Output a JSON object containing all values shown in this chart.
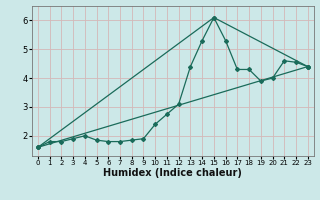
{
  "title": "",
  "xlabel": "Humidex (Indice chaleur)",
  "background_color": "#cce8e8",
  "grid_color": "#d4b8b8",
  "line_color": "#1a6b5a",
  "xlim": [
    -0.5,
    23.5
  ],
  "ylim": [
    1.3,
    6.5
  ],
  "yticks": [
    2,
    3,
    4,
    5,
    6
  ],
  "xticks": [
    0,
    1,
    2,
    3,
    4,
    5,
    6,
    7,
    8,
    9,
    10,
    11,
    12,
    13,
    14,
    15,
    16,
    17,
    18,
    19,
    20,
    21,
    22,
    23
  ],
  "series1_x": [
    0,
    1,
    2,
    3,
    4,
    5,
    6,
    7,
    8,
    9,
    10,
    11,
    12,
    13,
    14,
    15,
    16,
    17,
    18,
    19,
    20,
    21,
    22,
    23
  ],
  "series1_y": [
    1.6,
    1.8,
    1.8,
    1.9,
    2.0,
    1.85,
    1.8,
    1.8,
    1.85,
    1.9,
    2.4,
    2.75,
    3.1,
    4.4,
    5.3,
    6.1,
    5.3,
    4.3,
    4.3,
    3.9,
    4.0,
    4.6,
    4.55,
    4.4
  ],
  "series2_x": [
    0,
    15,
    23
  ],
  "series2_y": [
    1.6,
    6.1,
    4.4
  ],
  "series3_x": [
    0,
    23
  ],
  "series3_y": [
    1.6,
    4.4
  ],
  "xlabel_fontsize": 7,
  "tick_fontsize": 5,
  "marker_size": 2.0,
  "line_width": 0.9
}
